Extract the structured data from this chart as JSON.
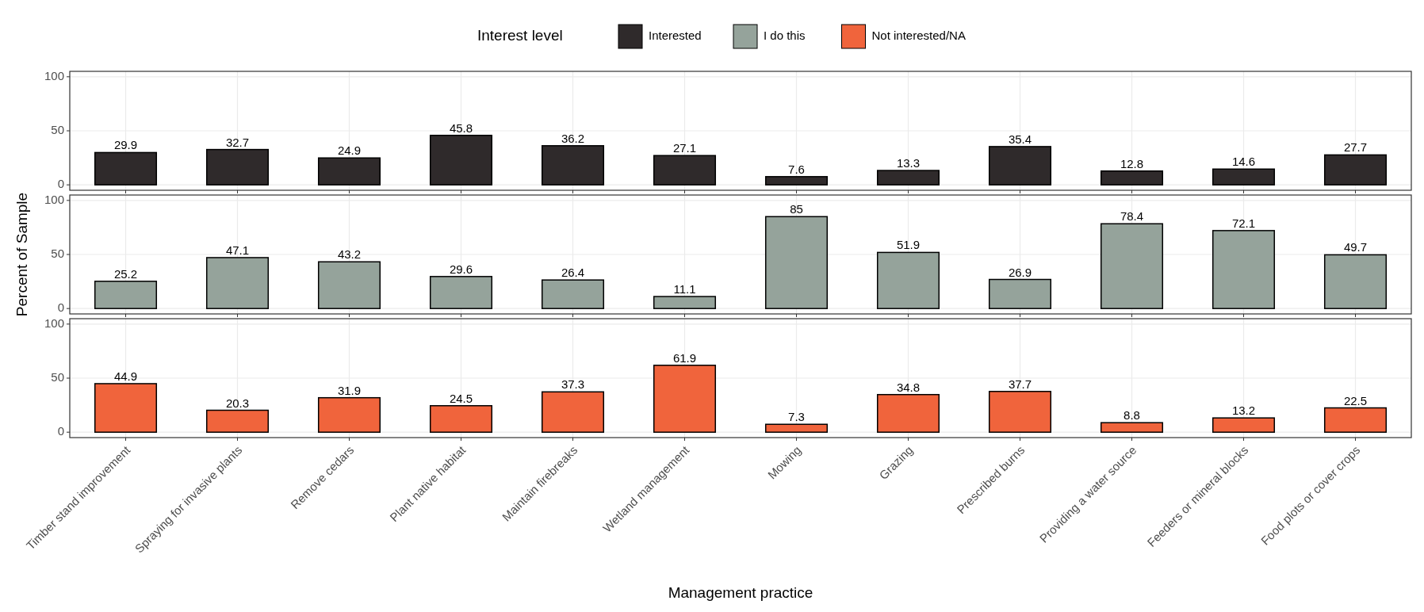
{
  "chart_data": [
    {
      "type": "bar",
      "legend_title": "Interest level",
      "legend": "top",
      "grid": true,
      "data_labels": true,
      "tick_labels": "y",
      "ylim": [
        -5,
        105
      ],
      "yticks": [
        0,
        50,
        100
      ],
      "categories": [
        null,
        null,
        null,
        null,
        null,
        null,
        null,
        null,
        null,
        null,
        null,
        null
      ],
      "series": [
        {
          "name": "Interested",
          "color": "#2f2a2b",
          "values": [
            29.9,
            32.7,
            24.9,
            45.8,
            36.2,
            27.1,
            7.6,
            13.3,
            35.4,
            12.8,
            14.6,
            27.7
          ]
        }
      ]
    },
    {
      "type": "bar",
      "legend": "top",
      "ylabel": "Percent of Sample",
      "grid": true,
      "data_labels": true,
      "tick_labels": "y",
      "ylim": [
        -5,
        105
      ],
      "yticks": [
        0,
        50,
        100
      ],
      "categories": [
        null,
        null,
        null,
        null,
        null,
        null,
        null,
        null,
        null,
        null,
        null,
        null
      ],
      "series": [
        {
          "name": "I do this",
          "color": "#95a39b",
          "values": [
            25.2,
            47.1,
            43.2,
            29.6,
            26.4,
            11.1,
            85,
            51.9,
            26.9,
            78.4,
            72.1,
            49.7
          ]
        }
      ]
    },
    {
      "type": "bar",
      "legend": "top",
      "xlabel": "Management practice",
      "grid": true,
      "data_labels": true,
      "ylim": [
        -5,
        105
      ],
      "yticks": [
        0,
        50,
        100
      ],
      "categories": [
        "Timber stand improvement",
        "Spraying for invasive plants",
        "Remove cedars",
        "Plant native habitat",
        "Maintain firebreaks",
        "Wetland management",
        "Mowing",
        "Grazing",
        "Prescribed burns",
        "Providing a water source",
        "Feeders or mineral blocks",
        "Food plots or cover crops"
      ],
      "series": [
        {
          "name": "Not interested/NA",
          "color": "#f0643c",
          "values": [
            44.9,
            20.3,
            31.9,
            24.5,
            37.3,
            61.9,
            7.3,
            34.8,
            37.7,
            8.8,
            13.2,
            22.5
          ]
        }
      ]
    }
  ]
}
